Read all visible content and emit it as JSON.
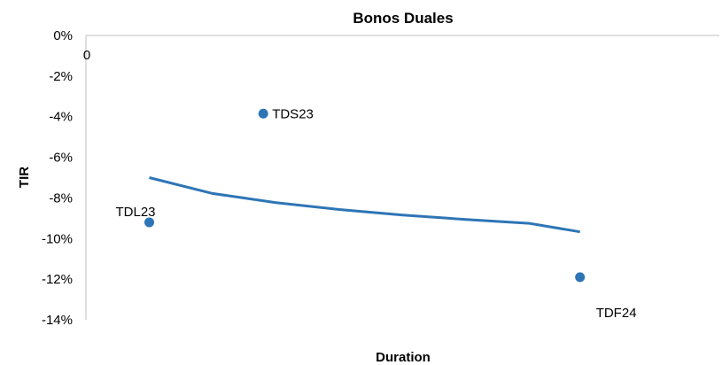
{
  "chart_data": {
    "type": "scatter",
    "title": "Bonos Duales",
    "xlabel": "Duration",
    "ylabel": "TIR",
    "ylim": [
      -0.14,
      0
    ],
    "yticks": [
      0,
      -0.02,
      -0.04,
      -0.06,
      -0.08,
      -0.1,
      -0.12,
      -0.14
    ],
    "ytick_labels": [
      "0%",
      "-2%",
      "-4%",
      "-6%",
      "-8%",
      "-10%",
      "-12%",
      "-14%"
    ],
    "xtick_labels": [
      "0"
    ],
    "grid": false,
    "legend": "none",
    "series": [
      {
        "points": [
          {
            "label": "TDL23",
            "x": 0.25,
            "y": -0.092
          },
          {
            "label": "TDS23",
            "x": 0.7,
            "y": -0.0385
          },
          {
            "label": "TDF24",
            "x": 1.95,
            "y": -0.119
          }
        ],
        "color": "#2e75b6"
      }
    ],
    "trendline": {
      "type": "logarithmic",
      "color": "#2e75b6",
      "points": [
        {
          "x": 0.25,
          "y": -0.07
        },
        {
          "x": 0.5,
          "y": -0.0778
        },
        {
          "x": 0.75,
          "y": -0.0823
        },
        {
          "x": 1.0,
          "y": -0.0857
        },
        {
          "x": 1.25,
          "y": -0.0884
        },
        {
          "x": 1.5,
          "y": -0.0906
        },
        {
          "x": 1.75,
          "y": -0.0925
        },
        {
          "x": 1.95,
          "y": -0.0967
        }
      ]
    }
  }
}
